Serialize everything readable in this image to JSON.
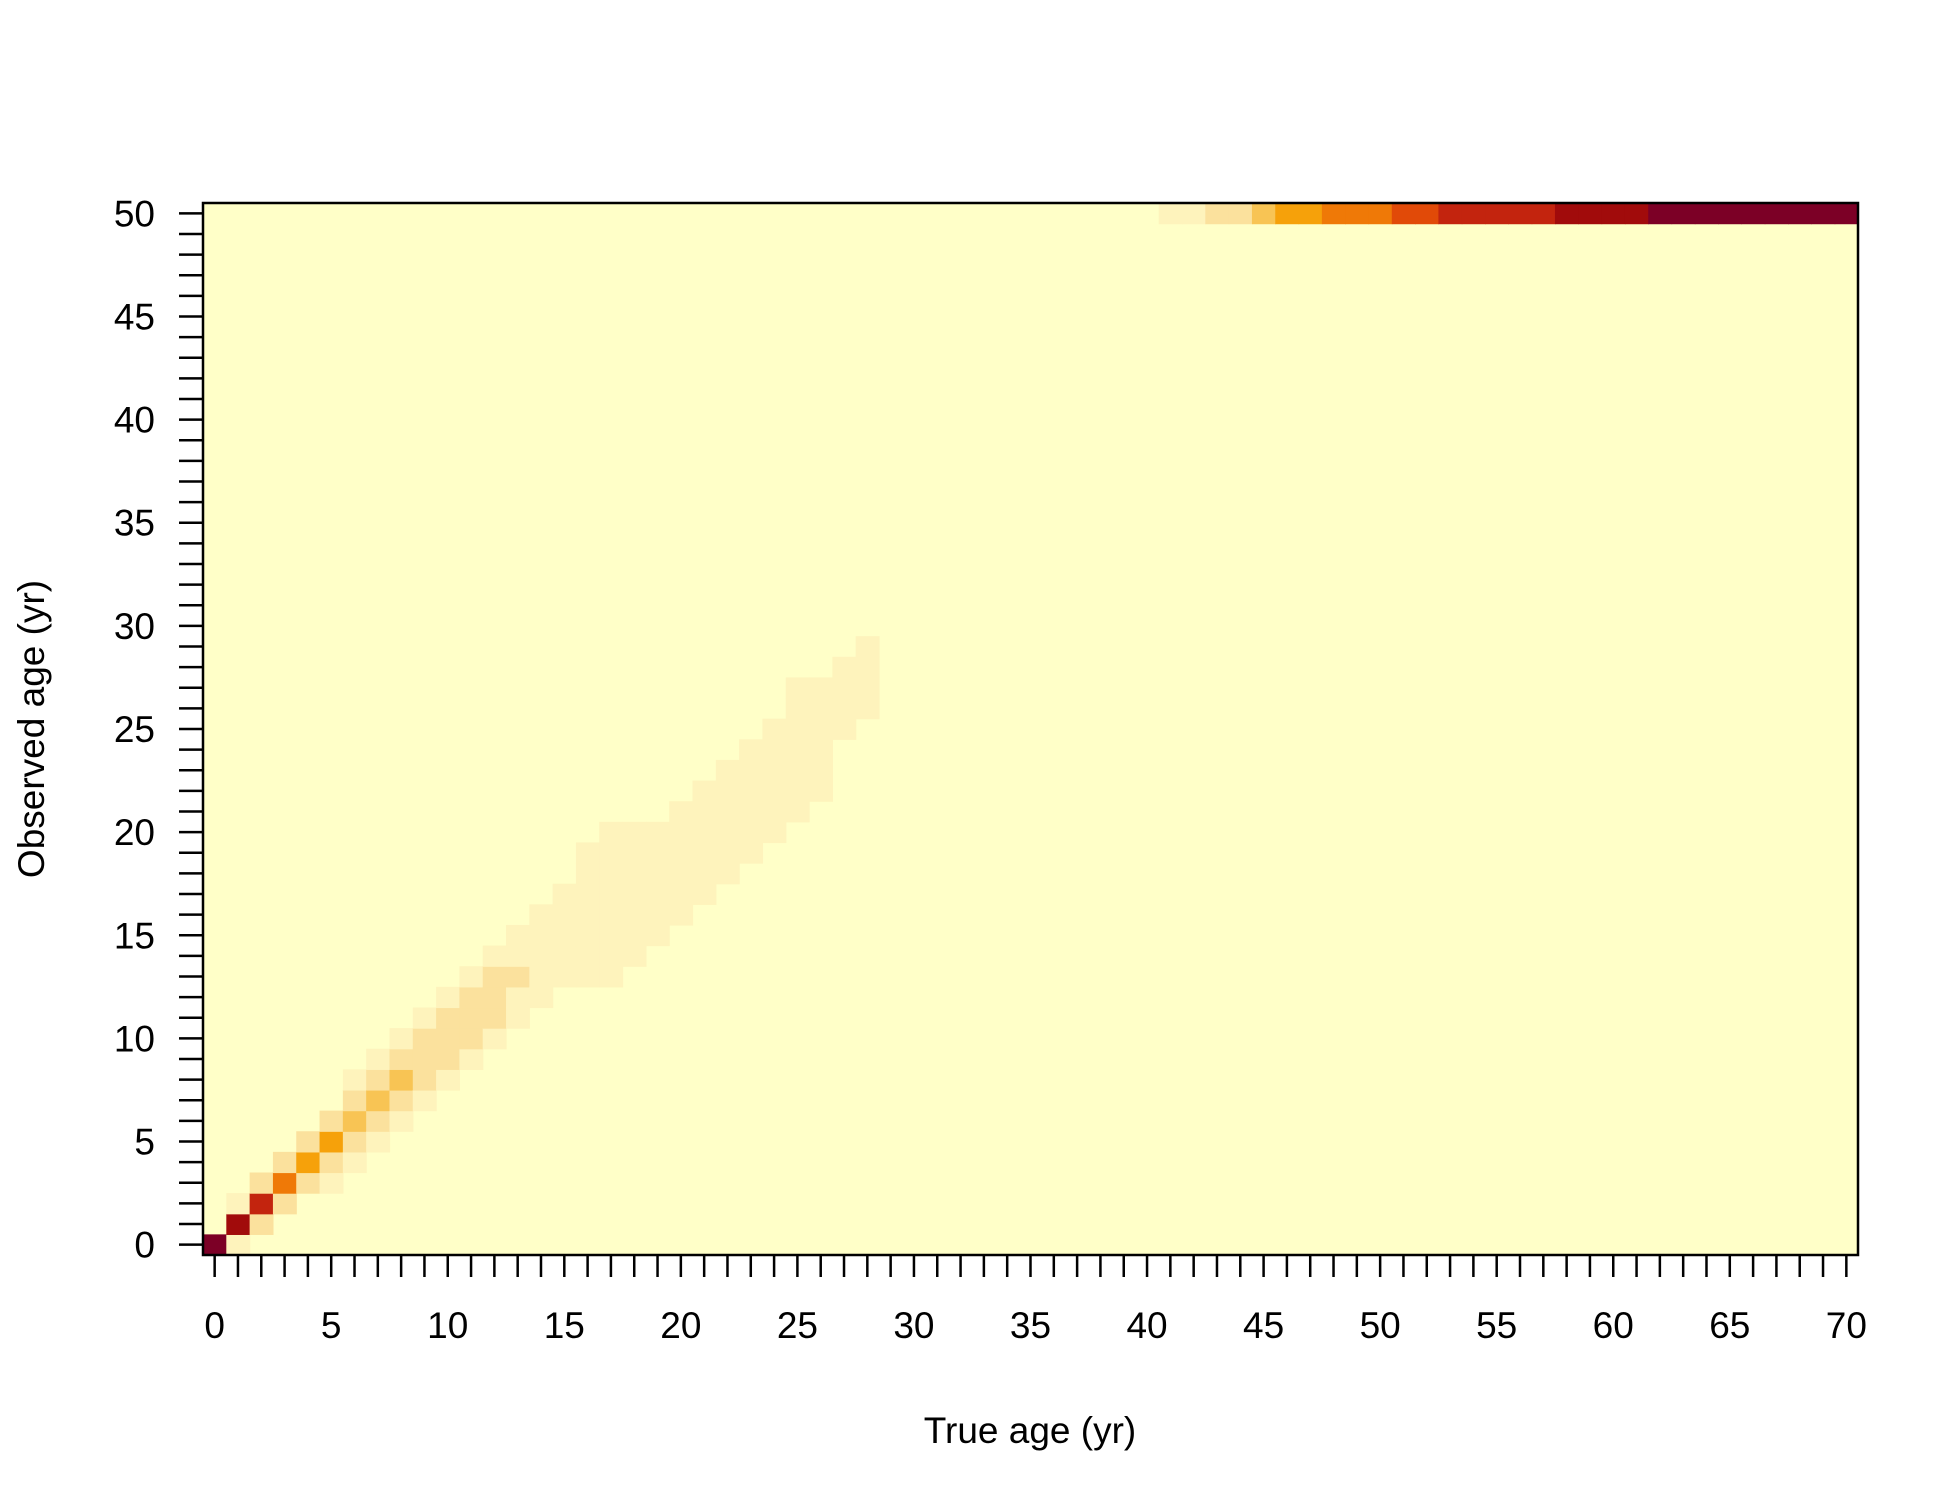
{
  "chart_data": {
    "type": "heatmap",
    "title": "",
    "xlabel": "True age (yr)",
    "ylabel": "Observed age (yr)",
    "xlim": [
      0,
      70
    ],
    "ylim": [
      0,
      50
    ],
    "x_ticks": [
      "0",
      "5",
      "10",
      "15",
      "20",
      "25",
      "30",
      "35",
      "40",
      "45",
      "50",
      "55",
      "60",
      "65",
      "70"
    ],
    "y_ticks": [
      "0",
      "5",
      "10",
      "15",
      "20",
      "25",
      "30",
      "35",
      "40",
      "45",
      "50"
    ],
    "grid": false,
    "legend": "none",
    "colormap": [
      "#FFFFC8",
      "#FEF3BC",
      "#FBE19D",
      "#F8C454",
      "#F6A10A",
      "#EF7907",
      "#E14A08",
      "#C3240E",
      "#A10B0B",
      "#7C0026"
    ],
    "background_color": "#FFFFC8",
    "cells": [
      {
        "x": 0,
        "y": 0,
        "v": 1.0
      },
      {
        "x": 1,
        "y": 0,
        "v": 0.12
      },
      {
        "x": 1,
        "y": 1,
        "v": 0.92
      },
      {
        "x": 1,
        "y": 2,
        "v": 0.12
      },
      {
        "x": 2,
        "y": 1,
        "v": 0.2
      },
      {
        "x": 2,
        "y": 2,
        "v": 0.75
      },
      {
        "x": 2,
        "y": 3,
        "v": 0.2
      },
      {
        "x": 3,
        "y": 2,
        "v": 0.25
      },
      {
        "x": 3,
        "y": 3,
        "v": 0.6
      },
      {
        "x": 3,
        "y": 4,
        "v": 0.25
      },
      {
        "x": 4,
        "y": 3,
        "v": 0.25
      },
      {
        "x": 4,
        "y": 4,
        "v": 0.48
      },
      {
        "x": 4,
        "y": 5,
        "v": 0.25
      },
      {
        "x": 5,
        "y": 3,
        "v": 0.12
      },
      {
        "x": 5,
        "y": 4,
        "v": 0.25
      },
      {
        "x": 5,
        "y": 5,
        "v": 0.4
      },
      {
        "x": 5,
        "y": 6,
        "v": 0.22
      },
      {
        "x": 6,
        "y": 4,
        "v": 0.12
      },
      {
        "x": 6,
        "y": 5,
        "v": 0.22
      },
      {
        "x": 6,
        "y": 6,
        "v": 0.33
      },
      {
        "x": 6,
        "y": 7,
        "v": 0.2
      },
      {
        "x": 6,
        "y": 8,
        "v": 0.1
      },
      {
        "x": 7,
        "y": 5,
        "v": 0.12
      },
      {
        "x": 7,
        "y": 6,
        "v": 0.2
      },
      {
        "x": 7,
        "y": 7,
        "v": 0.3
      },
      {
        "x": 7,
        "y": 8,
        "v": 0.2
      },
      {
        "x": 7,
        "y": 9,
        "v": 0.1
      },
      {
        "x": 8,
        "y": 6,
        "v": 0.12
      },
      {
        "x": 8,
        "y": 7,
        "v": 0.2
      },
      {
        "x": 8,
        "y": 8,
        "v": 0.28
      },
      {
        "x": 8,
        "y": 9,
        "v": 0.2
      },
      {
        "x": 8,
        "y": 10,
        "v": 0.1
      },
      {
        "x": 9,
        "y": 7,
        "v": 0.12
      },
      {
        "x": 9,
        "y": 8,
        "v": 0.2
      },
      {
        "x": 9,
        "y": 9,
        "v": 0.22
      },
      {
        "x": 9,
        "y": 10,
        "v": 0.2
      },
      {
        "x": 9,
        "y": 11,
        "v": 0.1
      },
      {
        "x": 10,
        "y": 8,
        "v": 0.12
      },
      {
        "x": 10,
        "y": 9,
        "v": 0.2
      },
      {
        "x": 10,
        "y": 10,
        "v": 0.22
      },
      {
        "x": 10,
        "y": 11,
        "v": 0.2
      },
      {
        "x": 10,
        "y": 12,
        "v": 0.1
      },
      {
        "x": 11,
        "y": 9,
        "v": 0.12
      },
      {
        "x": 11,
        "y": 10,
        "v": 0.2
      },
      {
        "x": 11,
        "y": 11,
        "v": 0.22
      },
      {
        "x": 11,
        "y": 12,
        "v": 0.2
      },
      {
        "x": 11,
        "y": 13,
        "v": 0.1
      },
      {
        "x": 12,
        "y": 10,
        "v": 0.12
      },
      {
        "x": 12,
        "y": 11,
        "v": 0.2
      },
      {
        "x": 12,
        "y": 12,
        "v": 0.22
      },
      {
        "x": 12,
        "y": 13,
        "v": 0.2
      },
      {
        "x": 12,
        "y": 14,
        "v": 0.1
      },
      {
        "x": 13,
        "y": 11,
        "v": 0.1
      },
      {
        "x": 13,
        "y": 12,
        "v": 0.12
      },
      {
        "x": 13,
        "y": 13,
        "v": 0.2
      },
      {
        "x": 13,
        "y": 14,
        "v": 0.12
      },
      {
        "x": 13,
        "y": 15,
        "v": 0.1
      },
      {
        "x": 14,
        "y": 12,
        "v": 0.1
      },
      {
        "x": 14,
        "y": 13,
        "v": 0.12
      },
      {
        "x": 14,
        "y": 14,
        "v": 0.12
      },
      {
        "x": 14,
        "y": 15,
        "v": 0.12
      },
      {
        "x": 14,
        "y": 16,
        "v": 0.1
      },
      {
        "x": 15,
        "y": 13,
        "v": 0.1
      },
      {
        "x": 15,
        "y": 14,
        "v": 0.12
      },
      {
        "x": 15,
        "y": 15,
        "v": 0.12
      },
      {
        "x": 15,
        "y": 16,
        "v": 0.12
      },
      {
        "x": 15,
        "y": 17,
        "v": 0.1
      },
      {
        "x": 16,
        "y": 13,
        "v": 0.1
      },
      {
        "x": 16,
        "y": 14,
        "v": 0.12
      },
      {
        "x": 16,
        "y": 15,
        "v": 0.12
      },
      {
        "x": 16,
        "y": 16,
        "v": 0.12
      },
      {
        "x": 16,
        "y": 17,
        "v": 0.1
      },
      {
        "x": 16,
        "y": 18,
        "v": 0.1
      },
      {
        "x": 16,
        "y": 19,
        "v": 0.1
      },
      {
        "x": 17,
        "y": 13,
        "v": 0.1
      },
      {
        "x": 17,
        "y": 14,
        "v": 0.12
      },
      {
        "x": 17,
        "y": 15,
        "v": 0.12
      },
      {
        "x": 17,
        "y": 16,
        "v": 0.12
      },
      {
        "x": 17,
        "y": 17,
        "v": 0.1
      },
      {
        "x": 17,
        "y": 18,
        "v": 0.1
      },
      {
        "x": 17,
        "y": 19,
        "v": 0.1
      },
      {
        "x": 17,
        "y": 20,
        "v": 0.1
      },
      {
        "x": 18,
        "y": 14,
        "v": 0.1
      },
      {
        "x": 18,
        "y": 15,
        "v": 0.12
      },
      {
        "x": 18,
        "y": 16,
        "v": 0.12
      },
      {
        "x": 18,
        "y": 17,
        "v": 0.12
      },
      {
        "x": 18,
        "y": 18,
        "v": 0.1
      },
      {
        "x": 18,
        "y": 19,
        "v": 0.1
      },
      {
        "x": 18,
        "y": 20,
        "v": 0.1
      },
      {
        "x": 19,
        "y": 15,
        "v": 0.1
      },
      {
        "x": 19,
        "y": 16,
        "v": 0.12
      },
      {
        "x": 19,
        "y": 17,
        "v": 0.12
      },
      {
        "x": 19,
        "y": 18,
        "v": 0.12
      },
      {
        "x": 19,
        "y": 19,
        "v": 0.1
      },
      {
        "x": 19,
        "y": 20,
        "v": 0.1
      },
      {
        "x": 20,
        "y": 16,
        "v": 0.1
      },
      {
        "x": 20,
        "y": 17,
        "v": 0.12
      },
      {
        "x": 20,
        "y": 18,
        "v": 0.12
      },
      {
        "x": 20,
        "y": 19,
        "v": 0.12
      },
      {
        "x": 20,
        "y": 20,
        "v": 0.1
      },
      {
        "x": 20,
        "y": 21,
        "v": 0.1
      },
      {
        "x": 21,
        "y": 17,
        "v": 0.1
      },
      {
        "x": 21,
        "y": 18,
        "v": 0.12
      },
      {
        "x": 21,
        "y": 19,
        "v": 0.12
      },
      {
        "x": 21,
        "y": 20,
        "v": 0.12
      },
      {
        "x": 21,
        "y": 21,
        "v": 0.1
      },
      {
        "x": 21,
        "y": 22,
        "v": 0.1
      },
      {
        "x": 22,
        "y": 18,
        "v": 0.1
      },
      {
        "x": 22,
        "y": 19,
        "v": 0.12
      },
      {
        "x": 22,
        "y": 20,
        "v": 0.12
      },
      {
        "x": 22,
        "y": 21,
        "v": 0.12
      },
      {
        "x": 22,
        "y": 22,
        "v": 0.1
      },
      {
        "x": 22,
        "y": 23,
        "v": 0.1
      },
      {
        "x": 23,
        "y": 19,
        "v": 0.1
      },
      {
        "x": 23,
        "y": 20,
        "v": 0.12
      },
      {
        "x": 23,
        "y": 21,
        "v": 0.12
      },
      {
        "x": 23,
        "y": 22,
        "v": 0.12
      },
      {
        "x": 23,
        "y": 23,
        "v": 0.1
      },
      {
        "x": 23,
        "y": 24,
        "v": 0.1
      },
      {
        "x": 24,
        "y": 20,
        "v": 0.1
      },
      {
        "x": 24,
        "y": 21,
        "v": 0.12
      },
      {
        "x": 24,
        "y": 22,
        "v": 0.12
      },
      {
        "x": 24,
        "y": 23,
        "v": 0.12
      },
      {
        "x": 24,
        "y": 24,
        "v": 0.1
      },
      {
        "x": 24,
        "y": 25,
        "v": 0.1
      },
      {
        "x": 25,
        "y": 21,
        "v": 0.1
      },
      {
        "x": 25,
        "y": 22,
        "v": 0.12
      },
      {
        "x": 25,
        "y": 23,
        "v": 0.12
      },
      {
        "x": 25,
        "y": 24,
        "v": 0.12
      },
      {
        "x": 25,
        "y": 25,
        "v": 0.1
      },
      {
        "x": 25,
        "y": 26,
        "v": 0.1
      },
      {
        "x": 25,
        "y": 27,
        "v": 0.1
      },
      {
        "x": 26,
        "y": 22,
        "v": 0.1
      },
      {
        "x": 26,
        "y": 23,
        "v": 0.12
      },
      {
        "x": 26,
        "y": 24,
        "v": 0.12
      },
      {
        "x": 26,
        "y": 25,
        "v": 0.12
      },
      {
        "x": 26,
        "y": 26,
        "v": 0.1
      },
      {
        "x": 26,
        "y": 27,
        "v": 0.1
      },
      {
        "x": 27,
        "y": 25,
        "v": 0.1
      },
      {
        "x": 27,
        "y": 26,
        "v": 0.1
      },
      {
        "x": 27,
        "y": 27,
        "v": 0.1
      },
      {
        "x": 27,
        "y": 28,
        "v": 0.1
      },
      {
        "x": 28,
        "y": 26,
        "v": 0.1
      },
      {
        "x": 28,
        "y": 27,
        "v": 0.1
      },
      {
        "x": 28,
        "y": 28,
        "v": 0.1
      },
      {
        "x": 28,
        "y": 29,
        "v": 0.1
      },
      {
        "x": 41,
        "y": 50,
        "v": 0.1
      },
      {
        "x": 42,
        "y": 50,
        "v": 0.1
      },
      {
        "x": 43,
        "y": 50,
        "v": 0.2
      },
      {
        "x": 44,
        "y": 50,
        "v": 0.2
      },
      {
        "x": 45,
        "y": 50,
        "v": 0.3
      },
      {
        "x": 46,
        "y": 50,
        "v": 0.4
      },
      {
        "x": 47,
        "y": 50,
        "v": 0.4
      },
      {
        "x": 48,
        "y": 50,
        "v": 0.5
      },
      {
        "x": 49,
        "y": 50,
        "v": 0.5
      },
      {
        "x": 50,
        "y": 50,
        "v": 0.6
      },
      {
        "x": 51,
        "y": 50,
        "v": 0.68
      },
      {
        "x": 52,
        "y": 50,
        "v": 0.68
      },
      {
        "x": 53,
        "y": 50,
        "v": 0.75
      },
      {
        "x": 54,
        "y": 50,
        "v": 0.75
      },
      {
        "x": 55,
        "y": 50,
        "v": 0.82
      },
      {
        "x": 56,
        "y": 50,
        "v": 0.82
      },
      {
        "x": 57,
        "y": 50,
        "v": 0.82
      },
      {
        "x": 58,
        "y": 50,
        "v": 0.9
      },
      {
        "x": 59,
        "y": 50,
        "v": 0.9
      },
      {
        "x": 60,
        "y": 50,
        "v": 0.9
      },
      {
        "x": 61,
        "y": 50,
        "v": 0.9
      },
      {
        "x": 62,
        "y": 50,
        "v": 1.0
      },
      {
        "x": 63,
        "y": 50,
        "v": 1.0
      },
      {
        "x": 64,
        "y": 50,
        "v": 1.0
      },
      {
        "x": 65,
        "y": 50,
        "v": 1.0
      },
      {
        "x": 66,
        "y": 50,
        "v": 1.0
      },
      {
        "x": 67,
        "y": 50,
        "v": 1.0
      },
      {
        "x": 68,
        "y": 50,
        "v": 1.0
      },
      {
        "x": 69,
        "y": 50,
        "v": 1.0
      },
      {
        "x": 70,
        "y": 50,
        "v": 1.0
      }
    ]
  }
}
